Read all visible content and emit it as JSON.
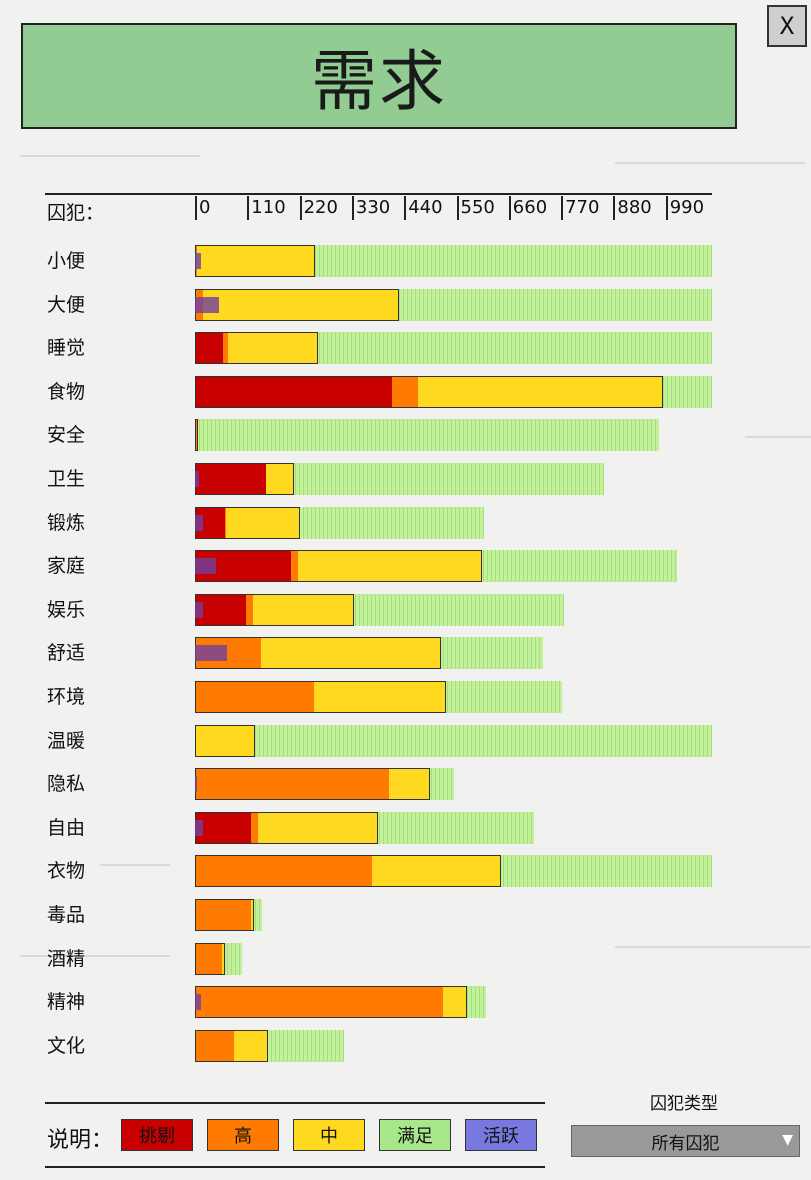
{
  "title": "需求",
  "close_label": "X",
  "header": {
    "label": "囚犯：",
    "ticks": [
      "0",
      "110",
      "220",
      "330",
      "440",
      "550",
      "660",
      "770",
      "880",
      "990"
    ]
  },
  "scale_max": 1100,
  "needs": [
    {
      "label": "小便",
      "red": 0,
      "orange": 4,
      "yellow": 251,
      "total": 1100,
      "active": 12
    },
    {
      "label": "大便",
      "red": 0,
      "orange": 18,
      "yellow": 417,
      "total": 1100,
      "active": 52
    },
    {
      "label": "睡觉",
      "red": 60,
      "orange": 11,
      "yellow": 190,
      "total": 1100,
      "active": 0
    },
    {
      "label": "食物",
      "red": 420,
      "orange": 55,
      "yellow": 520,
      "total": 1100,
      "active": 0
    },
    {
      "label": "安全",
      "red": 2,
      "orange": 4,
      "yellow": 0,
      "total": 987,
      "active": 0
    },
    {
      "label": "卫生",
      "red": 150,
      "orange": 0,
      "yellow": 60,
      "total": 870,
      "active": 8
    },
    {
      "label": "锻炼",
      "red": 64,
      "orange": 3,
      "yellow": 156,
      "total": 614,
      "active": 18
    },
    {
      "label": "家庭",
      "red": 205,
      "orange": 15,
      "yellow": 390,
      "total": 1025,
      "active": 44
    },
    {
      "label": "娱乐",
      "red": 108,
      "orange": 15,
      "yellow": 215,
      "total": 785,
      "active": 18
    },
    {
      "label": "舒适",
      "red": 0,
      "orange": 140,
      "yellow": 384,
      "total": 741,
      "active": 68
    },
    {
      "label": "环境",
      "red": 0,
      "orange": 253,
      "yellow": 280,
      "total": 780,
      "active": 0
    },
    {
      "label": "温暖",
      "red": 0,
      "orange": 0,
      "yellow": 127,
      "total": 1100,
      "active": 0
    },
    {
      "label": "隐私",
      "red": 0,
      "orange": 412,
      "yellow": 88,
      "total": 552,
      "active": 4
    },
    {
      "label": "自由",
      "red": 119,
      "orange": 15,
      "yellow": 256,
      "total": 722,
      "active": 18
    },
    {
      "label": "衣物",
      "red": 0,
      "orange": 376,
      "yellow": 276,
      "total": 1100,
      "active": 0
    },
    {
      "label": "毒品",
      "red": 0,
      "orange": 119,
      "yellow": 6,
      "total": 142,
      "active": 0
    },
    {
      "label": "酒精",
      "red": 0,
      "orange": 57,
      "yellow": 7,
      "total": 101,
      "active": 0
    },
    {
      "label": "精神",
      "red": 0,
      "orange": 528,
      "yellow": 51,
      "total": 620,
      "active": 12
    },
    {
      "label": "文化",
      "red": 0,
      "orange": 83,
      "yellow": 72,
      "total": 318,
      "active": 0
    }
  ],
  "legend": {
    "label": "说明：",
    "items": [
      {
        "label": "挑剔",
        "color": "#c90000"
      },
      {
        "label": "高",
        "color": "#ff7a00"
      },
      {
        "label": "中",
        "color": "#ffd91f"
      },
      {
        "label": "满足",
        "color": "#a9e88a"
      },
      {
        "label": "活跃",
        "color": "#7878e0"
      }
    ]
  },
  "prisoner_type": {
    "label": "囚犯类型",
    "selected": "所有囚犯"
  }
}
